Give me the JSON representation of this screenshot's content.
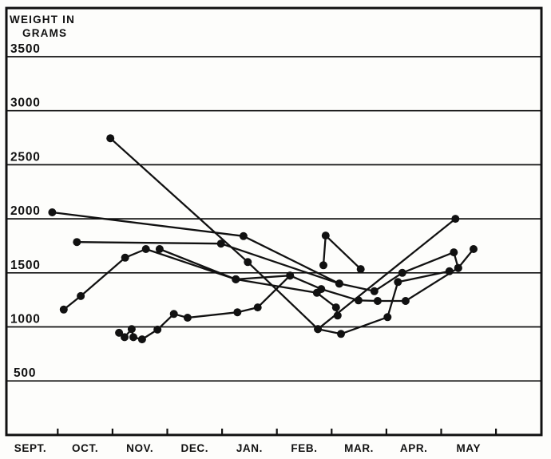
{
  "page": {
    "background": "#fdfdfb",
    "ink": "#111111",
    "description": "Scanned line chart of animal body weights from September to May"
  },
  "chart_data": {
    "type": "line",
    "title_lines": [
      "WEIGHT IN",
      "GRAMS"
    ],
    "ylabel": "Weight in grams",
    "x_categories": [
      "SEPT.",
      "OCT.",
      "NOV.",
      "DEC.",
      "JAN.",
      "FEB.",
      "MAR.",
      "APR.",
      "MAY"
    ],
    "x_note": "points use fractional month index, 0 = SEPT ... 8 = MAY",
    "y_ticks": [
      3500,
      3000,
      2500,
      2000,
      1500,
      1000,
      500
    ],
    "ylim": [
      0,
      3950
    ],
    "grid": "horizontal-only",
    "legend": "none",
    "marker": "filled-circle",
    "marker_radius_px": 5,
    "series": [
      {
        "id": "series-1",
        "points": [
          [
            0.4,
            2060
          ],
          [
            3.89,
            1840
          ],
          [
            5.64,
            1400
          ],
          [
            6.28,
            1330
          ],
          [
            6.79,
            1500
          ],
          [
            7.73,
            1690
          ],
          [
            7.81,
            1545
          ]
        ]
      },
      {
        "id": "series-2",
        "points": [
          [
            0.85,
            1785
          ],
          [
            3.48,
            1770
          ],
          [
            5.64,
            1400
          ]
        ]
      },
      {
        "id": "series-3",
        "points": [
          [
            1.46,
            2745
          ],
          [
            3.97,
            1600
          ],
          [
            5.25,
            980
          ],
          [
            7.76,
            2000
          ]
        ]
      },
      {
        "id": "series-4",
        "points": [
          [
            0.61,
            1160
          ],
          [
            0.92,
            1285
          ],
          [
            1.73,
            1640
          ],
          [
            2.11,
            1720
          ],
          [
            3.75,
            1440
          ],
          [
            4.74,
            1475
          ],
          [
            5.31,
            1350
          ],
          [
            5.99,
            1245
          ],
          [
            6.34,
            1240
          ],
          [
            6.85,
            1240
          ],
          [
            7.81,
            1545
          ],
          [
            8.09,
            1720
          ]
        ]
      },
      {
        "id": "series-5",
        "points": [
          [
            3.75,
            1440
          ],
          [
            5.23,
            1315
          ],
          [
            5.58,
            1180
          ],
          [
            5.61,
            1105
          ]
        ]
      },
      {
        "id": "series-6",
        "points": [
          [
            5.35,
            1570
          ],
          [
            5.39,
            1845
          ],
          [
            6.03,
            1535
          ]
        ]
      },
      {
        "id": "series-7",
        "points": [
          [
            1.62,
            945
          ],
          [
            1.72,
            905
          ],
          [
            1.85,
            980
          ],
          [
            1.88,
            905
          ],
          [
            2.04,
            885
          ],
          [
            2.32,
            975
          ],
          [
            2.62,
            1120
          ],
          [
            2.87,
            1085
          ],
          [
            3.78,
            1135
          ],
          [
            4.15,
            1180
          ],
          [
            4.74,
            1475
          ]
        ]
      },
      {
        "id": "series-8",
        "points": [
          [
            2.36,
            1720
          ],
          [
            3.75,
            1440
          ]
        ]
      },
      {
        "id": "series-9",
        "points": [
          [
            5.25,
            980
          ],
          [
            5.67,
            935
          ],
          [
            6.52,
            1090
          ],
          [
            6.71,
            1415
          ],
          [
            7.65,
            1515
          ]
        ]
      }
    ]
  }
}
